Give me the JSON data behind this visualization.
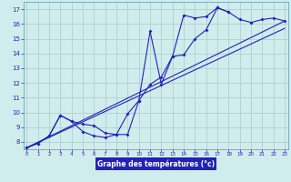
{
  "xlabel": "Graphe des températures (°c)",
  "bg_color": "#d1ecec",
  "grid_color": "#afd0d0",
  "line_color": "#2222bb",
  "x": [
    0,
    1,
    2,
    3,
    4,
    5,
    6,
    7,
    8,
    9,
    10,
    11,
    12,
    13,
    14,
    15,
    16,
    17,
    18,
    19,
    20,
    21,
    22,
    23
  ],
  "line1_y": [
    7.6,
    7.9,
    8.4,
    9.8,
    9.4,
    8.7,
    8.4,
    8.3,
    8.5,
    9.9,
    10.8,
    11.9,
    12.4,
    13.8,
    16.6,
    16.4,
    16.5,
    17.1,
    16.8,
    16.3,
    16.1,
    16.3,
    16.4,
    16.2
  ],
  "line2_y": [
    7.6,
    7.9,
    8.4,
    9.8,
    9.4,
    9.2,
    9.1,
    8.6,
    8.5,
    8.5,
    10.8,
    15.5,
    11.9,
    13.8,
    13.9,
    15.0,
    15.6,
    17.1,
    16.8,
    null,
    null,
    null,
    null,
    null
  ],
  "line3": [
    [
      0,
      7.6
    ],
    [
      23,
      16.2
    ]
  ],
  "line4": [
    [
      0,
      7.6
    ],
    [
      23,
      15.7
    ]
  ],
  "ylim": [
    7.5,
    17.5
  ],
  "xlim": [
    -0.3,
    23.3
  ],
  "yticks": [
    8,
    9,
    10,
    11,
    12,
    13,
    14,
    15,
    16,
    17
  ],
  "xticks": [
    0,
    1,
    2,
    3,
    4,
    5,
    6,
    7,
    8,
    9,
    10,
    11,
    12,
    13,
    14,
    15,
    16,
    17,
    18,
    19,
    20,
    21,
    22,
    23
  ]
}
